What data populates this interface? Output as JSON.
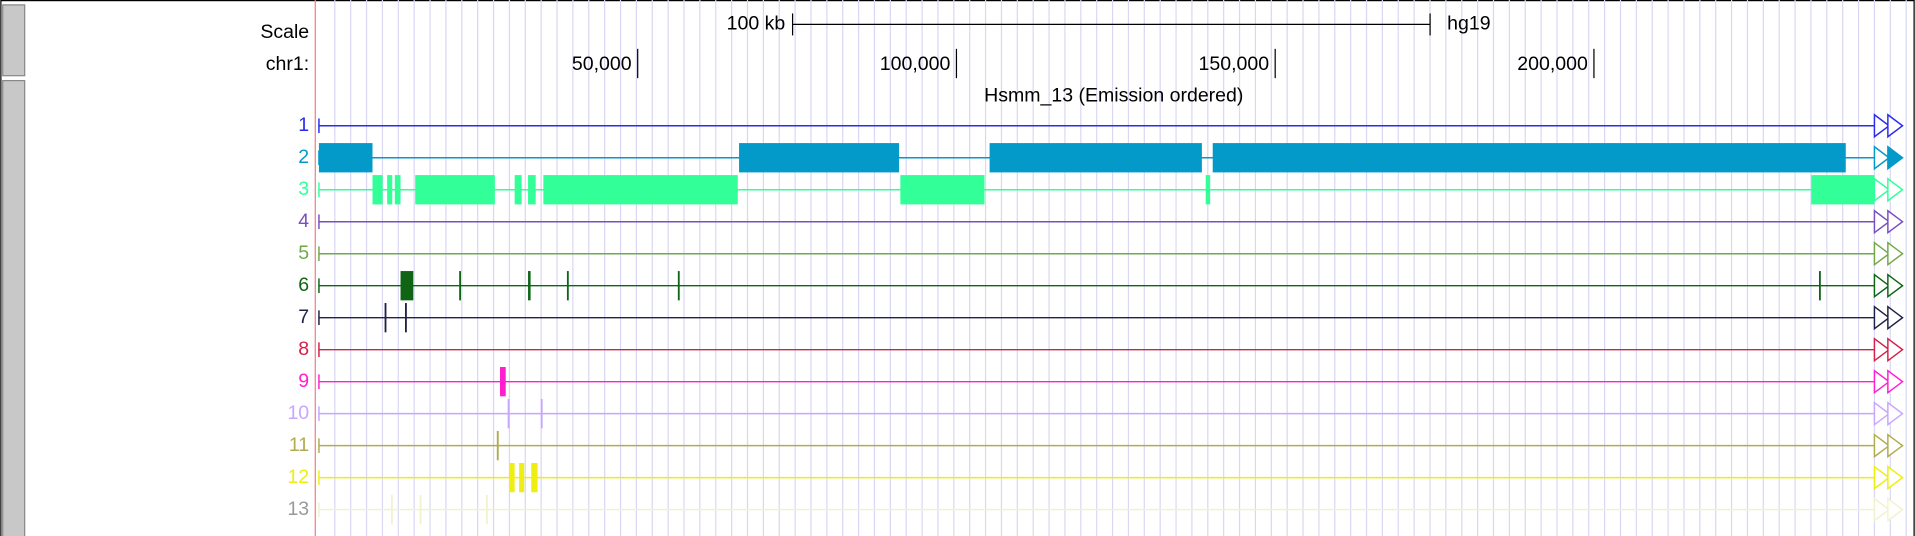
{
  "browser": {
    "scale": {
      "label": "Scale",
      "bar_label": "100 kb",
      "bar_length": 100000,
      "assembly": "hg19"
    },
    "chrom": {
      "label": "chr1:",
      "xlim": [
        0,
        244000
      ],
      "ticks": [
        {
          "value": 50000,
          "label": "50,000"
        },
        {
          "value": 100000,
          "label": "100,000"
        },
        {
          "value": 150000,
          "label": "150,000"
        },
        {
          "value": 200000,
          "label": "200,000"
        }
      ]
    },
    "track_title": "Hsmm_13 (Emission ordered)",
    "tracks": [
      {
        "label": "1",
        "color": "#2b2bf0",
        "blocks": []
      },
      {
        "label": "2",
        "color": "#0399c9",
        "blocks": [
          [
            0,
            8400
          ],
          [
            65900,
            91000
          ],
          [
            105200,
            138500
          ],
          [
            140200,
            239500
          ]
        ]
      },
      {
        "label": "3",
        "color": "#33ff99",
        "blocks": [
          [
            8400,
            10000
          ],
          [
            10700,
            11500
          ],
          [
            11900,
            12800
          ],
          [
            15100,
            27600
          ],
          [
            30700,
            31800
          ],
          [
            32800,
            34000
          ],
          [
            35200,
            65700
          ],
          [
            91200,
            104400
          ],
          [
            139100,
            139800
          ],
          [
            234100,
            244000
          ]
        ]
      },
      {
        "label": "4",
        "color": "#7a4fbf",
        "blocks": []
      },
      {
        "label": "5",
        "color": "#72a84a",
        "blocks": []
      },
      {
        "label": "6",
        "color": "#0f6415",
        "blocks": [
          [
            12800,
            14800
          ],
          [
            22000,
            22200
          ],
          [
            32800,
            33200
          ],
          [
            38900,
            39100
          ],
          [
            56300,
            56500
          ],
          [
            235300,
            235500
          ]
        ]
      },
      {
        "label": "7",
        "color": "#1f2147",
        "blocks": [
          [
            10300,
            10500
          ],
          [
            13500,
            13700
          ]
        ]
      },
      {
        "label": "8",
        "color": "#d4214a",
        "blocks": []
      },
      {
        "label": "9",
        "color": "#ff1fcf",
        "blocks": [
          [
            28400,
            29300
          ]
        ]
      },
      {
        "label": "10",
        "color": "#c8a6ff",
        "blocks": [
          [
            29600,
            29800
          ],
          [
            34800,
            35000
          ]
        ]
      },
      {
        "label": "11",
        "color": "#b1ac4f",
        "blocks": [
          [
            27900,
            28200
          ]
        ]
      },
      {
        "label": "12",
        "color": "#eeee12",
        "blocks": [
          [
            29900,
            30700
          ],
          [
            31400,
            32200
          ],
          [
            33300,
            34300
          ]
        ]
      },
      {
        "label": "13",
        "color": "#f2f2d0",
        "blocks": [
          [
            11300,
            11500
          ],
          [
            15800,
            16000
          ],
          [
            26200,
            26400
          ]
        ]
      }
    ]
  }
}
